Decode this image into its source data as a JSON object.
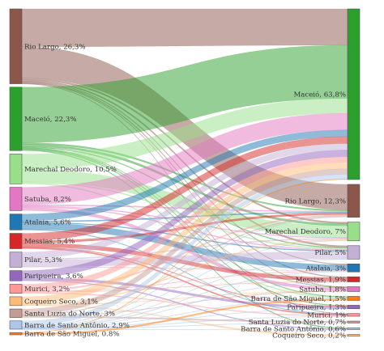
{
  "diagram": {
    "type": "sankey",
    "left_nodes": [
      {
        "id": "L_rio_largo",
        "label": "Rio Largo, 26,3%",
        "value": 26.3,
        "color": "#8c564b"
      },
      {
        "id": "L_maceio",
        "label": "Maceió, 22,3%",
        "value": 22.3,
        "color": "#2ca02c"
      },
      {
        "id": "L_marechal",
        "label": "Marechal Deodoro, 10,5%",
        "value": 10.5,
        "color": "#98df8a"
      },
      {
        "id": "L_satuba",
        "label": "Satuba, 8,2%",
        "value": 8.2,
        "color": "#e377c2"
      },
      {
        "id": "L_atalaia",
        "label": "Atalaia, 5,6%",
        "value": 5.6,
        "color": "#1f77b4"
      },
      {
        "id": "L_messias",
        "label": "Messias, 5,4%",
        "value": 5.4,
        "color": "#d62728"
      },
      {
        "id": "L_pilar",
        "label": "Pilar, 5,3%",
        "value": 5.3,
        "color": "#c5b0d5"
      },
      {
        "id": "L_paripueira",
        "label": "Paripueira, 3,6%",
        "value": 3.6,
        "color": "#9467bd"
      },
      {
        "id": "L_murici",
        "label": "Murici, 3,2%",
        "value": 3.2,
        "color": "#ff9896"
      },
      {
        "id": "L_coqueiro",
        "label": "Coqueiro Seco, 3,1%",
        "value": 3.1,
        "color": "#ffbb78"
      },
      {
        "id": "L_santa_luzia",
        "label": "Santa Luzia do Norte, 3%",
        "value": 3.0,
        "color": "#c49c94"
      },
      {
        "id": "L_barra_sa",
        "label": "Barra de Santo Antônio, 2,9%",
        "value": 2.9,
        "color": "#aec7e8"
      },
      {
        "id": "L_barra_sm",
        "label": "Barra de São Miguel, 0.8%",
        "value": 0.8,
        "color": "#ff7f0e"
      }
    ],
    "right_nodes": [
      {
        "id": "R_maceio",
        "label": "Maceió, 63,8%",
        "value": 63.8,
        "color": "#2ca02c"
      },
      {
        "id": "R_rio_largo",
        "label": "Rio Largo, 12,3%",
        "value": 12.3,
        "color": "#8c564b"
      },
      {
        "id": "R_marechal",
        "label": "Marechal Deodoro, 7%",
        "value": 7.0,
        "color": "#98df8a"
      },
      {
        "id": "R_pilar",
        "label": "Pilar, 5%",
        "value": 5.0,
        "color": "#c5b0d5"
      },
      {
        "id": "R_atalaia",
        "label": "Atalaia, 3%",
        "value": 3.0,
        "color": "#1f77b4"
      },
      {
        "id": "R_messias",
        "label": "Messias, 1,9%",
        "value": 1.9,
        "color": "#d62728"
      },
      {
        "id": "R_satuba",
        "label": "Satuba, 1,8%",
        "value": 1.8,
        "color": "#e377c2"
      },
      {
        "id": "R_barra_sm",
        "label": "Barra de São Miguel, 1,5%",
        "value": 1.5,
        "color": "#ff7f0e"
      },
      {
        "id": "R_paripueira",
        "label": "Paripueira, 1,3%",
        "value": 1.3,
        "color": "#9467bd"
      },
      {
        "id": "R_murici",
        "label": "Murici, 1%",
        "value": 1.0,
        "color": "#ff9896"
      },
      {
        "id": "R_santa_luzia",
        "label": "Santa Luzia do Norte, 0,7%",
        "value": 0.7,
        "color": "#c49c94"
      },
      {
        "id": "R_barra_sa",
        "label": "Barra de Santo Antônio, 0,6%",
        "value": 0.6,
        "color": "#aec7e8"
      },
      {
        "id": "R_coqueiro",
        "label": "Coqueiro Seco, 0,2%",
        "value": 0.2,
        "color": "#ffbb78"
      }
    ],
    "links": [
      {
        "source": "L_rio_largo",
        "target": "R_maceio",
        "value": 13.3
      },
      {
        "source": "L_rio_largo",
        "target": "R_rio_largo",
        "value": 11.0
      },
      {
        "source": "L_rio_largo",
        "target": "R_marechal",
        "value": 0.6
      },
      {
        "source": "L_rio_largo",
        "target": "R_pilar",
        "value": 0.5
      },
      {
        "source": "L_rio_largo",
        "target": "R_atalaia",
        "value": 0.3
      },
      {
        "source": "L_rio_largo",
        "target": "R_messias",
        "value": 0.3
      },
      {
        "source": "L_rio_largo",
        "target": "R_satuba",
        "value": 0.2
      },
      {
        "source": "L_rio_largo",
        "target": "R_murici",
        "value": 0.1
      },
      {
        "source": "L_maceio",
        "target": "R_maceio",
        "value": 19.5
      },
      {
        "source": "L_maceio",
        "target": "R_rio_largo",
        "value": 0.6
      },
      {
        "source": "L_maceio",
        "target": "R_marechal",
        "value": 0.8
      },
      {
        "source": "L_maceio",
        "target": "R_pilar",
        "value": 0.3
      },
      {
        "source": "L_maceio",
        "target": "R_satuba",
        "value": 0.2
      },
      {
        "source": "L_maceio",
        "target": "R_barra_sm",
        "value": 0.3
      },
      {
        "source": "L_maceio",
        "target": "R_paripueira",
        "value": 0.3
      },
      {
        "source": "L_maceio",
        "target": "R_barra_sa",
        "value": 0.3
      },
      {
        "source": "L_marechal",
        "target": "R_maceio",
        "value": 5.4
      },
      {
        "source": "L_marechal",
        "target": "R_marechal",
        "value": 4.3
      },
      {
        "source": "L_marechal",
        "target": "R_pilar",
        "value": 0.4
      },
      {
        "source": "L_marechal",
        "target": "R_barra_sm",
        "value": 0.4
      },
      {
        "source": "L_satuba",
        "target": "R_maceio",
        "value": 6.1
      },
      {
        "source": "L_satuba",
        "target": "R_rio_largo",
        "value": 0.4
      },
      {
        "source": "L_satuba",
        "target": "R_satuba",
        "value": 1.1
      },
      {
        "source": "L_satuba",
        "target": "R_pilar",
        "value": 0.3
      },
      {
        "source": "L_satuba",
        "target": "R_marechal",
        "value": 0.3
      },
      {
        "source": "L_atalaia",
        "target": "R_maceio",
        "value": 2.4
      },
      {
        "source": "L_atalaia",
        "target": "R_atalaia",
        "value": 2.3
      },
      {
        "source": "L_atalaia",
        "target": "R_rio_largo",
        "value": 0.4
      },
      {
        "source": "L_atalaia",
        "target": "R_pilar",
        "value": 0.3
      },
      {
        "source": "L_atalaia",
        "target": "R_murici",
        "value": 0.2
      },
      {
        "source": "L_messias",
        "target": "R_maceio",
        "value": 2.6
      },
      {
        "source": "L_messias",
        "target": "R_messias",
        "value": 1.4
      },
      {
        "source": "L_messias",
        "target": "R_rio_largo",
        "value": 0.8
      },
      {
        "source": "L_messias",
        "target": "R_murici",
        "value": 0.4
      },
      {
        "source": "L_messias",
        "target": "R_paripueira",
        "value": 0.2
      },
      {
        "source": "L_pilar",
        "target": "R_maceio",
        "value": 2.3
      },
      {
        "source": "L_pilar",
        "target": "R_pilar",
        "value": 2.4
      },
      {
        "source": "L_pilar",
        "target": "R_marechal",
        "value": 0.4
      },
      {
        "source": "L_pilar",
        "target": "R_atalaia",
        "value": 0.2
      },
      {
        "source": "L_paripueira",
        "target": "R_maceio",
        "value": 2.5
      },
      {
        "source": "L_paripueira",
        "target": "R_paripueira",
        "value": 0.8
      },
      {
        "source": "L_paripueira",
        "target": "R_barra_sa",
        "value": 0.3
      },
      {
        "source": "L_murici",
        "target": "R_maceio",
        "value": 2.0
      },
      {
        "source": "L_murici",
        "target": "R_messias",
        "value": 0.2
      },
      {
        "source": "L_murici",
        "target": "R_murici",
        "value": 0.3
      },
      {
        "source": "L_murici",
        "target": "R_rio_largo",
        "value": 0.5
      },
      {
        "source": "L_murici",
        "target": "R_atalaia",
        "value": 0.2
      },
      {
        "source": "L_coqueiro",
        "target": "R_maceio",
        "value": 2.4
      },
      {
        "source": "L_coqueiro",
        "target": "R_marechal",
        "value": 0.4
      },
      {
        "source": "L_coqueiro",
        "target": "R_satuba",
        "value": 0.1
      },
      {
        "source": "L_coqueiro",
        "target": "R_coqueiro",
        "value": 0.2
      },
      {
        "source": "L_santa_luzia",
        "target": "R_maceio",
        "value": 2.0
      },
      {
        "source": "L_santa_luzia",
        "target": "R_rio_largo",
        "value": 0.3
      },
      {
        "source": "L_santa_luzia",
        "target": "R_santa_luzia",
        "value": 0.5
      },
      {
        "source": "L_santa_luzia",
        "target": "R_satuba",
        "value": 0.2
      },
      {
        "source": "L_barra_sa",
        "target": "R_maceio",
        "value": 1.7
      },
      {
        "source": "L_barra_sa",
        "target": "R_barra_sa",
        "value": 0.0
      },
      {
        "source": "L_barra_sa",
        "target": "R_paripueira",
        "value": 0.0
      },
      {
        "source": "L_barra_sa",
        "target": "R_rio_largo",
        "value": 0.3
      },
      {
        "source": "L_barra_sa",
        "target": "R_marechal",
        "value": 0.2
      },
      {
        "source": "L_barra_sa",
        "target": "R_pilar",
        "value": 0.0
      },
      {
        "source": "L_barra_sa",
        "target": "R_atalaia",
        "value": 0.3
      },
      {
        "source": "L_barra_sa",
        "target": "R_santa_luzia",
        "value": 0.2
      },
      {
        "source": "L_barra_sa",
        "target": "R_messias",
        "value": 0.0
      },
      {
        "source": "L_barra_sa",
        "target": "R_murici",
        "value": 0.0
      },
      {
        "source": "L_barra_sa",
        "target": "R_barra_sm",
        "value": 0.2
      },
      {
        "source": "L_barra_sm",
        "target": "R_barra_sm",
        "value": 0.6
      },
      {
        "source": "L_barra_sm",
        "target": "R_maceio",
        "value": 0.2
      }
    ]
  }
}
